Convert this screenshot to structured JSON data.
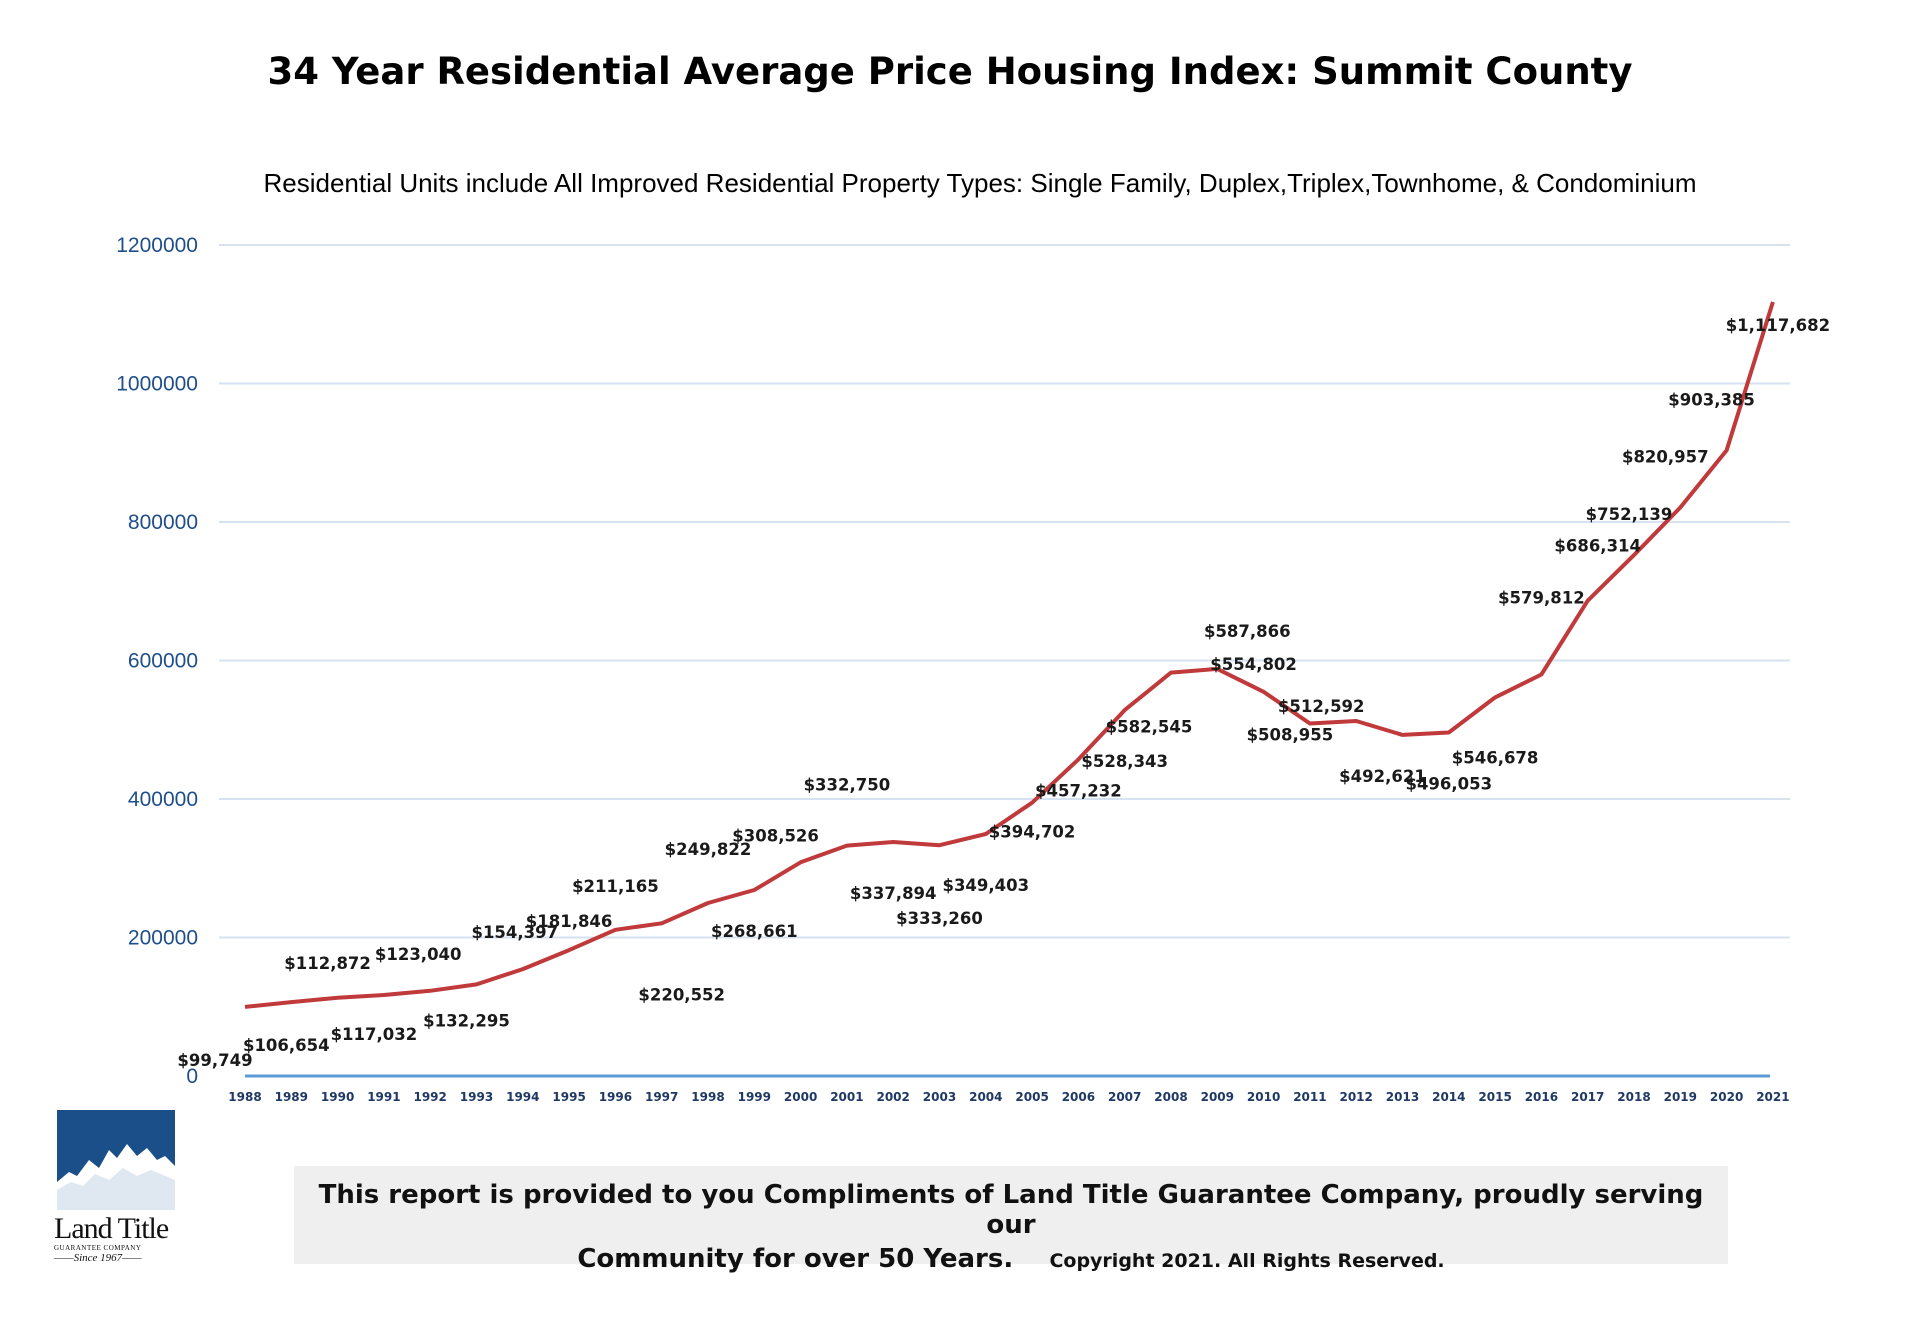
{
  "chart_data": {
    "type": "line",
    "title": "34 Year Residential Average Price Housing Index: Summit County",
    "subtitle": "Residential Units include All Improved Residential Property Types: Single Family, Duplex,Triplex,Townhome, & Condominium",
    "ylim": [
      0,
      1200000
    ],
    "yticks": [
      "0",
      "200000",
      "400000",
      "600000",
      "800000",
      "1000000",
      "1200000"
    ],
    "ytick_values": [
      0,
      200000,
      400000,
      600000,
      800000,
      1000000,
      1200000
    ],
    "grid": true,
    "series_color": "#c0393b",
    "categories": [
      "1988",
      "1989",
      "1990",
      "1991",
      "1992",
      "1993",
      "1994",
      "1995",
      "1996",
      "1997",
      "1998",
      "1999",
      "2000",
      "2001",
      "2002",
      "2003",
      "2004",
      "2005",
      "2006",
      "2007",
      "2008",
      "2009",
      "2010",
      "2011",
      "2012",
      "2013",
      "2014",
      "2015",
      "2016",
      "2017",
      "2018",
      "2019",
      "2020",
      "2021"
    ],
    "values": [
      99749,
      106654,
      112872,
      117032,
      123040,
      132295,
      154397,
      181846,
      211165,
      220552,
      249822,
      268661,
      308526,
      332750,
      337894,
      333260,
      349403,
      394702,
      457232,
      528343,
      582545,
      587866,
      554802,
      508955,
      512592,
      492621,
      496053,
      546678,
      579812,
      686314,
      752139,
      820957,
      903385,
      1117682
    ],
    "data_labels": [
      "$99,749",
      "$106,654",
      "$112,872",
      "$117,032",
      "$123,040",
      "$132,295",
      "$154,397",
      "$181,846",
      "$211,165",
      "$220,552",
      "$249,822",
      "$268,661",
      "$308,526",
      "$332,750",
      "$337,894",
      "$333,260",
      "$349,403",
      "$394,702",
      "$457,232",
      "$528,343",
      "$582,545",
      "$587,866",
      "$554,802",
      "$508,955",
      "$512,592",
      "$492,621",
      "$496,053",
      "$546,678",
      "$579,812",
      "$686,314",
      "$752,139",
      "$820,957",
      "$903,385",
      "$1,117,682"
    ]
  },
  "footer": {
    "line1": "This report is provided to you Compliments of Land Title Guarantee Company, proudly serving our",
    "line2": "Community for over 50 Years",
    "line2_end": ".",
    "copyright": "Copyright 2021.  All Rights Reserved."
  },
  "logo": {
    "name": "Land Title",
    "sub": "GUARANTEE COMPANY",
    "since": "Since 1967"
  }
}
